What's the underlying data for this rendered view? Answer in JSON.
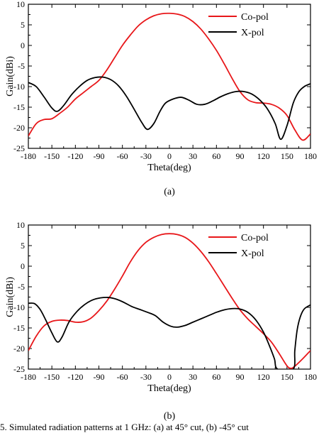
{
  "caption": "5. Simulated radiation patterns at 1 GHz: (a) at 45° cut, (b) -45° cut",
  "chart_data": [
    {
      "type": "line",
      "panel": "(a)",
      "xlabel": "Theta(deg)",
      "ylabel": "Gain(dBi)",
      "xlim": [
        -180,
        180
      ],
      "ylim": [
        -25,
        10
      ],
      "xticks": [
        -180,
        -150,
        -120,
        -90,
        -60,
        -30,
        0,
        30,
        60,
        90,
        120,
        150,
        180
      ],
      "yticks": [
        10,
        5,
        0,
        -5,
        -10,
        -15,
        -20,
        -25
      ],
      "legend_position": "top-right",
      "series": [
        {
          "name": "Co-pol",
          "color": "#e8171a",
          "points": [
            [
              -180,
              -22
            ],
            [
              -170,
              -19
            ],
            [
              -160,
              -18
            ],
            [
              -150,
              -17.8
            ],
            [
              -140,
              -16.5
            ],
            [
              -130,
              -15
            ],
            [
              -120,
              -13
            ],
            [
              -110,
              -11.5
            ],
            [
              -100,
              -10
            ],
            [
              -90,
              -8.5
            ],
            [
              -80,
              -6
            ],
            [
              -70,
              -3
            ],
            [
              -60,
              0
            ],
            [
              -50,
              2.5
            ],
            [
              -40,
              4.7
            ],
            [
              -30,
              6.2
            ],
            [
              -20,
              7.2
            ],
            [
              -10,
              7.7
            ],
            [
              0,
              7.8
            ],
            [
              10,
              7.6
            ],
            [
              20,
              7
            ],
            [
              30,
              5.8
            ],
            [
              40,
              4
            ],
            [
              50,
              1.6
            ],
            [
              60,
              -1.2
            ],
            [
              70,
              -4.5
            ],
            [
              80,
              -8
            ],
            [
              90,
              -11.2
            ],
            [
              100,
              -13.2
            ],
            [
              110,
              -13.9
            ],
            [
              120,
              -14
            ],
            [
              130,
              -14.3
            ],
            [
              140,
              -15.2
            ],
            [
              150,
              -17
            ],
            [
              160,
              -20.5
            ],
            [
              170,
              -23
            ],
            [
              180,
              -21.5
            ]
          ]
        },
        {
          "name": "X-pol",
          "color": "#000000",
          "points": [
            [
              -180,
              -9
            ],
            [
              -170,
              -10
            ],
            [
              -160,
              -12.5
            ],
            [
              -150,
              -15.2
            ],
            [
              -143,
              -16
            ],
            [
              -135,
              -14.6
            ],
            [
              -125,
              -12
            ],
            [
              -115,
              -10
            ],
            [
              -105,
              -8.5
            ],
            [
              -95,
              -7.8
            ],
            [
              -85,
              -7.7
            ],
            [
              -75,
              -8.3
            ],
            [
              -65,
              -9.8
            ],
            [
              -55,
              -12.3
            ],
            [
              -45,
              -15.5
            ],
            [
              -35,
              -18.8
            ],
            [
              -28,
              -20.4
            ],
            [
              -20,
              -19
            ],
            [
              -12,
              -16
            ],
            [
              -5,
              -14
            ],
            [
              5,
              -13
            ],
            [
              15,
              -12.6
            ],
            [
              25,
              -13.3
            ],
            [
              35,
              -14.3
            ],
            [
              45,
              -14.3
            ],
            [
              55,
              -13.5
            ],
            [
              65,
              -12.5
            ],
            [
              75,
              -11.7
            ],
            [
              85,
              -11.2
            ],
            [
              95,
              -11.2
            ],
            [
              105,
              -11.8
            ],
            [
              115,
              -13.2
            ],
            [
              125,
              -15.4
            ],
            [
              135,
              -19
            ],
            [
              142,
              -22.8
            ],
            [
              150,
              -19.5
            ],
            [
              158,
              -14
            ],
            [
              165,
              -11.3
            ],
            [
              172,
              -10
            ],
            [
              180,
              -9.3
            ]
          ]
        }
      ]
    },
    {
      "type": "line",
      "panel": "(b)",
      "xlabel": "Theta(deg)",
      "ylabel": "Gain(dBi)",
      "xlim": [
        -180,
        180
      ],
      "ylim": [
        -25,
        10
      ],
      "xticks": [
        -180,
        -150,
        -120,
        -90,
        -60,
        -30,
        0,
        30,
        60,
        90,
        120,
        150,
        180
      ],
      "yticks": [
        10,
        5,
        0,
        -5,
        -10,
        -15,
        -20,
        -25
      ],
      "legend_position": "top-right",
      "series": [
        {
          "name": "Co-pol",
          "color": "#e8171a",
          "points": [
            [
              -180,
              -20.5
            ],
            [
              -170,
              -17
            ],
            [
              -160,
              -14.5
            ],
            [
              -150,
              -13.4
            ],
            [
              -140,
              -13.1
            ],
            [
              -130,
              -13.2
            ],
            [
              -120,
              -13.6
            ],
            [
              -110,
              -13.5
            ],
            [
              -100,
              -12.6
            ],
            [
              -90,
              -10.8
            ],
            [
              -80,
              -8.5
            ],
            [
              -70,
              -5.6
            ],
            [
              -60,
              -2.4
            ],
            [
              -50,
              1
            ],
            [
              -40,
              3.8
            ],
            [
              -30,
              5.8
            ],
            [
              -20,
              7
            ],
            [
              -10,
              7.7
            ],
            [
              0,
              7.9
            ],
            [
              10,
              7.7
            ],
            [
              20,
              7
            ],
            [
              30,
              5.6
            ],
            [
              40,
              3.6
            ],
            [
              50,
              1.1
            ],
            [
              60,
              -1.8
            ],
            [
              70,
              -4.8
            ],
            [
              80,
              -7.8
            ],
            [
              90,
              -10.6
            ],
            [
              100,
              -12.8
            ],
            [
              110,
              -14.6
            ],
            [
              120,
              -16.4
            ],
            [
              130,
              -18.4
            ],
            [
              140,
              -21.2
            ],
            [
              150,
              -24.2
            ],
            [
              155,
              -24.8
            ],
            [
              160,
              -24.3
            ],
            [
              170,
              -22.5
            ],
            [
              180,
              -20.5
            ]
          ]
        },
        {
          "name": "X-pol",
          "color": "#000000",
          "points": [
            [
              -180,
              -9
            ],
            [
              -172,
              -9.1
            ],
            [
              -165,
              -10.5
            ],
            [
              -158,
              -13
            ],
            [
              -150,
              -16.2
            ],
            [
              -143,
              -18.4
            ],
            [
              -137,
              -17.2
            ],
            [
              -128,
              -13.5
            ],
            [
              -118,
              -11
            ],
            [
              -108,
              -9.3
            ],
            [
              -98,
              -8.2
            ],
            [
              -88,
              -7.7
            ],
            [
              -78,
              -7.6
            ],
            [
              -68,
              -8
            ],
            [
              -58,
              -8.8
            ],
            [
              -48,
              -9.8
            ],
            [
              -38,
              -10.5
            ],
            [
              -28,
              -11.2
            ],
            [
              -18,
              -12
            ],
            [
              -8,
              -13.6
            ],
            [
              2,
              -14.6
            ],
            [
              10,
              -14.8
            ],
            [
              20,
              -14.4
            ],
            [
              30,
              -13.6
            ],
            [
              40,
              -12.8
            ],
            [
              50,
              -12
            ],
            [
              60,
              -11.2
            ],
            [
              70,
              -10.6
            ],
            [
              80,
              -10.3
            ],
            [
              90,
              -10.4
            ],
            [
              100,
              -11.2
            ],
            [
              110,
              -13
            ],
            [
              120,
              -16
            ],
            [
              128,
              -19.5
            ],
            [
              134,
              -22.5
            ],
            [
              138,
              -25
            ],
            [
              158,
              -25
            ],
            [
              160,
              -20.5
            ],
            [
              163,
              -15.5
            ],
            [
              167,
              -12.3
            ],
            [
              172,
              -10.4
            ],
            [
              180,
              -9.4
            ]
          ]
        }
      ]
    }
  ]
}
